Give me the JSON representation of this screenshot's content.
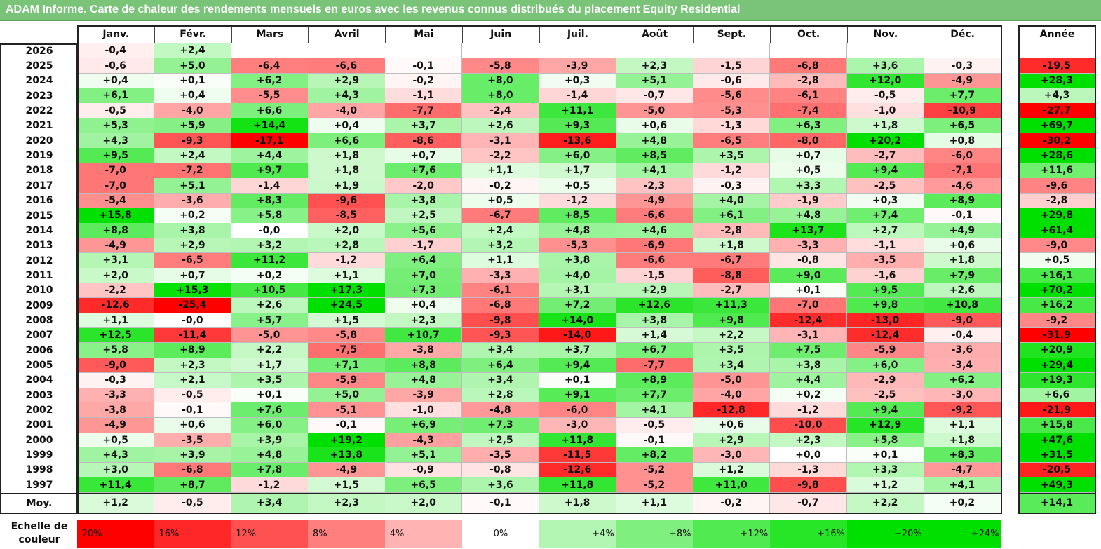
{
  "title": "ADAM Informe. Carte de chaleur des rendements mensuels en euros avec les revenus connus distribués du placement Equity Residential",
  "colors": {
    "title_bg": "#7ac47a",
    "neg_max": "#ff0000",
    "pos_max": "#00e000",
    "neutral": "#ffffff"
  },
  "chart_data": {
    "type": "heatmap",
    "title": "ADAM Informe. Carte de chaleur des rendements mensuels en euros avec les revenus connus distribués du placement Equity Residential",
    "months": [
      "Janv.",
      "Févr.",
      "Mars",
      "Avril",
      "Mai",
      "Juin",
      "Juil.",
      "Août",
      "Sept.",
      "Oct.",
      "Nov.",
      "Déc."
    ],
    "year_header": "Année",
    "rows": [
      {
        "year": "2026",
        "months": [
          "-0,4",
          "+2,4",
          "",
          "",
          "",
          "",
          "",
          "",
          "",
          "",
          "",
          ""
        ],
        "annual": ""
      },
      {
        "year": "2025",
        "months": [
          "-0,6",
          "+5,0",
          "-6,4",
          "-6,6",
          "-0,1",
          "-5,8",
          "-3,9",
          "+2,3",
          "-1,5",
          "-6,8",
          "+3,6",
          "-0,3"
        ],
        "annual": "-19,5"
      },
      {
        "year": "2024",
        "months": [
          "+0,4",
          "+0,1",
          "+6,2",
          "+2,9",
          "-0,2",
          "+8,0",
          "+0,3",
          "+5,1",
          "-0,6",
          "-2,8",
          "+12,0",
          "-4,9"
        ],
        "annual": "+28,3"
      },
      {
        "year": "2023",
        "months": [
          "+6,1",
          "+0,4",
          "-5,5",
          "+4,3",
          "-1,1",
          "+8,0",
          "-1,4",
          "-0,7",
          "-5,6",
          "-6,1",
          "-0,5",
          "+7,7"
        ],
        "annual": "+4,3"
      },
      {
        "year": "2022",
        "months": [
          "-0,5",
          "-4,0",
          "+6,6",
          "-4,0",
          "-7,7",
          "-2,4",
          "+11,1",
          "-5,0",
          "-5,3",
          "-7,4",
          "-1,0",
          "-10,9"
        ],
        "annual": "-27,7"
      },
      {
        "year": "2021",
        "months": [
          "+5,3",
          "+5,9",
          "+14,4",
          "+0,4",
          "+3,7",
          "+2,6",
          "+9,3",
          "+0,6",
          "-1,3",
          "+6,3",
          "+1,8",
          "+6,5"
        ],
        "annual": "+69,7"
      },
      {
        "year": "2020",
        "months": [
          "+4,3",
          "-9,3",
          "-17,1",
          "+6,6",
          "-8,6",
          "-3,1",
          "-13,6",
          "+4,8",
          "-6,5",
          "-8,0",
          "+20,2",
          "+0,8"
        ],
        "annual": "-30,2"
      },
      {
        "year": "2019",
        "months": [
          "+9,5",
          "+2,4",
          "+4,4",
          "+1,8",
          "+0,7",
          "-2,2",
          "+6,0",
          "+8,5",
          "+3,5",
          "+0,7",
          "-2,7",
          "-6,0"
        ],
        "annual": "+28,6"
      },
      {
        "year": "2018",
        "months": [
          "-7,0",
          "-7,2",
          "+9,7",
          "+1,8",
          "+7,6",
          "+1,1",
          "+1,7",
          "+4,1",
          "-1,2",
          "+0,5",
          "+9,4",
          "-7,1"
        ],
        "annual": "+11,6"
      },
      {
        "year": "2017",
        "months": [
          "-7,0",
          "+5,1",
          "-1,4",
          "+1,9",
          "-2,0",
          "-0,2",
          "+0,5",
          "-2,3",
          "-0,3",
          "+3,3",
          "-2,5",
          "-4,6"
        ],
        "annual": "-9,6"
      },
      {
        "year": "2016",
        "months": [
          "-5,4",
          "-3,6",
          "+8,3",
          "-9,6",
          "+3,8",
          "+0,5",
          "-1,2",
          "-4,9",
          "+4,0",
          "-1,9",
          "+0,3",
          "+8,9"
        ],
        "annual": "-2,8"
      },
      {
        "year": "2015",
        "months": [
          "+15,8",
          "+0,2",
          "+5,8",
          "-8,5",
          "+2,5",
          "-6,7",
          "+8,5",
          "-6,6",
          "+6,1",
          "+4,8",
          "+7,4",
          "-0,1"
        ],
        "annual": "+29,8"
      },
      {
        "year": "2014",
        "months": [
          "+8,8",
          "+3,8",
          "-0,0",
          "+2,0",
          "+5,6",
          "+2,4",
          "+4,8",
          "+4,6",
          "-2,8",
          "+13,7",
          "+2,7",
          "+4,9"
        ],
        "annual": "+61,4"
      },
      {
        "year": "2013",
        "months": [
          "-4,9",
          "+2,9",
          "+3,2",
          "+2,8",
          "-1,7",
          "+3,2",
          "-5,3",
          "-6,9",
          "+1,8",
          "-3,3",
          "-1,1",
          "+0,6"
        ],
        "annual": "-9,0"
      },
      {
        "year": "2012",
        "months": [
          "+3,1",
          "-6,5",
          "+11,2",
          "-1,2",
          "+6,4",
          "+1,1",
          "+3,8",
          "-6,6",
          "-6,7",
          "-0,8",
          "-3,5",
          "+1,8"
        ],
        "annual": "+0,5"
      },
      {
        "year": "2011",
        "months": [
          "+2,0",
          "+0,7",
          "+0,2",
          "+1,1",
          "+7,0",
          "-3,3",
          "+4,0",
          "-1,5",
          "-8,8",
          "+9,0",
          "-1,6",
          "+7,9"
        ],
        "annual": "+16,1"
      },
      {
        "year": "2010",
        "months": [
          "-2,2",
          "+15,3",
          "+10,5",
          "+17,3",
          "+7,3",
          "-6,1",
          "+3,1",
          "+2,9",
          "-2,7",
          "+0,1",
          "+9,5",
          "+2,6"
        ],
        "annual": "+70,2"
      },
      {
        "year": "2009",
        "months": [
          "-12,6",
          "-25,4",
          "+2,6",
          "+24,5",
          "+0,4",
          "-6,8",
          "+7,2",
          "+12,6",
          "+11,3",
          "-7,0",
          "+9,8",
          "+10,8"
        ],
        "annual": "+16,2"
      },
      {
        "year": "2008",
        "months": [
          "+1,1",
          "-0,0",
          "+5,7",
          "+1,5",
          "+2,3",
          "-9,8",
          "+14,0",
          "+3,8",
          "+9,8",
          "-12,4",
          "-13,0",
          "-9,0"
        ],
        "annual": "-9,2"
      },
      {
        "year": "2007",
        "months": [
          "+12,5",
          "-11,4",
          "-5,0",
          "-5,8",
          "+10,7",
          "-9,3",
          "-14,0",
          "+1,4",
          "+2,2",
          "-3,1",
          "-12,4",
          "-0,4"
        ],
        "annual": "-31,9"
      },
      {
        "year": "2006",
        "months": [
          "+5,8",
          "+8,9",
          "+2,2",
          "-7,5",
          "-3,8",
          "+3,4",
          "+3,7",
          "+6,7",
          "+3,5",
          "+7,5",
          "-5,9",
          "-3,6"
        ],
        "annual": "+20,9"
      },
      {
        "year": "2005",
        "months": [
          "-9,0",
          "+2,3",
          "+1,7",
          "+7,1",
          "+8,8",
          "+6,4",
          "+9,4",
          "-7,7",
          "+3,4",
          "+3,8",
          "+6,0",
          "-3,4"
        ],
        "annual": "+29,4"
      },
      {
        "year": "2004",
        "months": [
          "-0,3",
          "+2,1",
          "+3,5",
          "-5,9",
          "+4,8",
          "+3,4",
          "+0,1",
          "+8,9",
          "-5,0",
          "+4,4",
          "-2,9",
          "+6,2"
        ],
        "annual": "+19,3"
      },
      {
        "year": "2003",
        "months": [
          "-3,3",
          "-0,5",
          "+0,1",
          "+5,0",
          "-3,9",
          "+2,8",
          "+9,1",
          "+7,7",
          "-4,0",
          "+0,2",
          "-2,5",
          "-3,0"
        ],
        "annual": "+6,6"
      },
      {
        "year": "2002",
        "months": [
          "-3,8",
          "-0,1",
          "+7,6",
          "-5,1",
          "-1,0",
          "-4,8",
          "-6,0",
          "+4,1",
          "-12,8",
          "-1,2",
          "+9,4",
          "-9,2"
        ],
        "annual": "-21,9"
      },
      {
        "year": "2001",
        "months": [
          "-4,9",
          "+0,6",
          "+6,0",
          "-0,1",
          "+6,9",
          "+7,3",
          "-3,0",
          "-0,5",
          "+0,6",
          "-10,0",
          "+12,9",
          "+1,1"
        ],
        "annual": "+15,8"
      },
      {
        "year": "2000",
        "months": [
          "+0,5",
          "-3,5",
          "+3,9",
          "+19,2",
          "-4,3",
          "+2,5",
          "+11,8",
          "-0,1",
          "+2,9",
          "+2,3",
          "+5,8",
          "+1,8"
        ],
        "annual": "+47,6"
      },
      {
        "year": "1999",
        "months": [
          "+4,3",
          "+3,9",
          "+4,8",
          "+13,8",
          "+5,1",
          "-3,5",
          "-11,5",
          "+8,2",
          "-3,0",
          "+0,0",
          "+0,1",
          "+8,3"
        ],
        "annual": "+31,5"
      },
      {
        "year": "1998",
        "months": [
          "+3,0",
          "-6,8",
          "+7,8",
          "-4,9",
          "-0,9",
          "-0,8",
          "-12,6",
          "-5,2",
          "+1,2",
          "-1,3",
          "+3,3",
          "-4,7"
        ],
        "annual": "-20,5"
      },
      {
        "year": "1997",
        "months": [
          "+11,4",
          "+8,7",
          "-1,2",
          "+1,5",
          "+6,5",
          "+3,6",
          "+11,8",
          "-5,2",
          "+11,0",
          "-9,8",
          "+1,2",
          "+4,1"
        ],
        "annual": "+49,3"
      }
    ],
    "average": {
      "label": "Moy.",
      "months": [
        "+1,2",
        "-0,5",
        "+3,4",
        "+2,3",
        "+2,0",
        "-0,1",
        "+1,8",
        "+1,1",
        "-0,2",
        "-0,7",
        "+2,2",
        "+0,2"
      ],
      "annual": "+14,1"
    },
    "scale_label": "Echelle de couleur",
    "scale": [
      "-20%",
      "-16%",
      "-12%",
      "-8%",
      "-4%",
      "0%",
      "+4%",
      "+8%",
      "+12%",
      "+16%",
      "+20%",
      "+24%"
    ]
  }
}
